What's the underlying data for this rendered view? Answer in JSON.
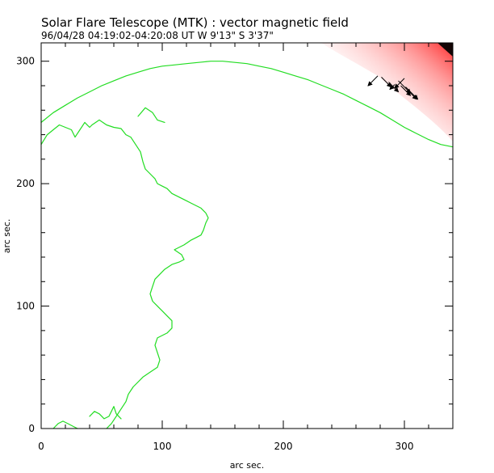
{
  "chart_data": {
    "type": "vector-magnetogram",
    "title": "Solar Flare Telescope (MTK) : vector magnetic field",
    "subtitle": "96/04/28  04:19:02-04:20:08 UT     W 9'13\"  S 3'37\"",
    "xlabel": "arc sec.",
    "ylabel": "arc sec.",
    "xlim": [
      0,
      340
    ],
    "ylim": [
      0,
      315
    ],
    "x_ticks": [
      0,
      100,
      200,
      300
    ],
    "y_ticks": [
      0,
      100,
      200,
      300
    ],
    "x_tick_labels": [
      "0",
      "100",
      "200",
      "300"
    ],
    "y_tick_labels": [
      "0",
      "100",
      "200",
      "300"
    ],
    "colors": {
      "contour": "#22dd22",
      "field_positive": "#ff3030",
      "vector": "#000000",
      "axes": "#000000"
    },
    "series": [
      {
        "type": "line",
        "points": [
          [
            0,
            250
          ],
          [
            10,
            258
          ],
          [
            20,
            264
          ],
          [
            30,
            270
          ],
          [
            40,
            275
          ],
          [
            50,
            280
          ],
          [
            60,
            284
          ],
          [
            70,
            288
          ],
          [
            80,
            291
          ],
          [
            90,
            294
          ],
          [
            100,
            296
          ],
          [
            110,
            297
          ],
          [
            120,
            298
          ],
          [
            130,
            299
          ],
          [
            140,
            300
          ],
          [
            150,
            300
          ],
          [
            160,
            299
          ],
          [
            170,
            298
          ],
          [
            180,
            296
          ],
          [
            190,
            294
          ],
          [
            200,
            291
          ],
          [
            210,
            288
          ],
          [
            220,
            285
          ],
          [
            230,
            281
          ],
          [
            240,
            277
          ],
          [
            250,
            273
          ],
          [
            260,
            268
          ],
          [
            270,
            263
          ],
          [
            280,
            258
          ],
          [
            290,
            252
          ],
          [
            300,
            246
          ],
          [
            310,
            241
          ],
          [
            320,
            236
          ],
          [
            330,
            232
          ],
          [
            340,
            230
          ]
        ]
      },
      {
        "type": "line",
        "points": [
          [
            0,
            232
          ],
          [
            5,
            240
          ],
          [
            10,
            244
          ],
          [
            15,
            248
          ],
          [
            20,
            246
          ],
          [
            25,
            244
          ],
          [
            28,
            238
          ],
          [
            32,
            244
          ],
          [
            36,
            250
          ],
          [
            40,
            246
          ],
          [
            42,
            248
          ],
          [
            48,
            252
          ],
          [
            54,
            248
          ],
          [
            60,
            246
          ],
          [
            66,
            245
          ],
          [
            70,
            240
          ],
          [
            74,
            238
          ],
          [
            78,
            232
          ],
          [
            82,
            226
          ],
          [
            84,
            218
          ],
          [
            86,
            212
          ],
          [
            90,
            208
          ],
          [
            94,
            204
          ],
          [
            96,
            200
          ],
          [
            100,
            198
          ],
          [
            104,
            196
          ],
          [
            108,
            192
          ],
          [
            112,
            190
          ],
          [
            116,
            188
          ],
          [
            120,
            186
          ],
          [
            124,
            184
          ],
          [
            128,
            182
          ],
          [
            132,
            180
          ],
          [
            136,
            176
          ],
          [
            138,
            172
          ],
          [
            136,
            168
          ],
          [
            134,
            162
          ],
          [
            132,
            158
          ],
          [
            128,
            156
          ],
          [
            124,
            154
          ],
          [
            118,
            150
          ],
          [
            114,
            148
          ],
          [
            110,
            146
          ],
          [
            116,
            142
          ],
          [
            118,
            138
          ],
          [
            114,
            136
          ],
          [
            108,
            134
          ],
          [
            102,
            130
          ],
          [
            98,
            126
          ],
          [
            94,
            122
          ],
          [
            92,
            116
          ],
          [
            90,
            110
          ],
          [
            92,
            104
          ],
          [
            96,
            100
          ],
          [
            100,
            96
          ],
          [
            104,
            92
          ],
          [
            108,
            88
          ],
          [
            108,
            82
          ],
          [
            104,
            78
          ],
          [
            100,
            76
          ],
          [
            96,
            74
          ],
          [
            94,
            68
          ],
          [
            96,
            62
          ],
          [
            98,
            56
          ],
          [
            96,
            50
          ],
          [
            90,
            46
          ],
          [
            84,
            42
          ],
          [
            80,
            38
          ],
          [
            76,
            34
          ],
          [
            72,
            28
          ],
          [
            70,
            22
          ],
          [
            66,
            16
          ],
          [
            62,
            10
          ],
          [
            58,
            4
          ],
          [
            54,
            0
          ]
        ]
      },
      {
        "type": "line",
        "points": [
          [
            10,
            0
          ],
          [
            14,
            4
          ],
          [
            18,
            6
          ],
          [
            22,
            4
          ],
          [
            26,
            2
          ],
          [
            30,
            0
          ]
        ]
      },
      {
        "type": "line",
        "points": [
          [
            40,
            10
          ],
          [
            44,
            14
          ],
          [
            48,
            12
          ],
          [
            52,
            8
          ],
          [
            56,
            10
          ],
          [
            58,
            14
          ],
          [
            60,
            18
          ],
          [
            62,
            12
          ],
          [
            66,
            8
          ]
        ]
      },
      {
        "type": "line",
        "points": [
          [
            80,
            255
          ],
          [
            86,
            262
          ],
          [
            92,
            258
          ],
          [
            96,
            252
          ],
          [
            102,
            250
          ]
        ]
      }
    ],
    "vectors": [
      {
        "x": 278,
        "y": 288,
        "dx": -8,
        "dy": -8
      },
      {
        "x": 281,
        "y": 287,
        "dx": 8,
        "dy": -8
      },
      {
        "x": 287,
        "y": 283,
        "dx": 8,
        "dy": -8
      },
      {
        "x": 292,
        "y": 281,
        "dx": -4,
        "dy": -4
      },
      {
        "x": 295,
        "y": 284,
        "dx": 10,
        "dy": -10
      },
      {
        "x": 297,
        "y": 280,
        "dx": 8,
        "dy": -8
      },
      {
        "x": 300,
        "y": 286,
        "dx": -8,
        "dy": -8
      },
      {
        "x": 301,
        "y": 279,
        "dx": 10,
        "dy": -10
      },
      {
        "x": 303,
        "y": 276,
        "dx": 7,
        "dy": -7
      }
    ]
  }
}
